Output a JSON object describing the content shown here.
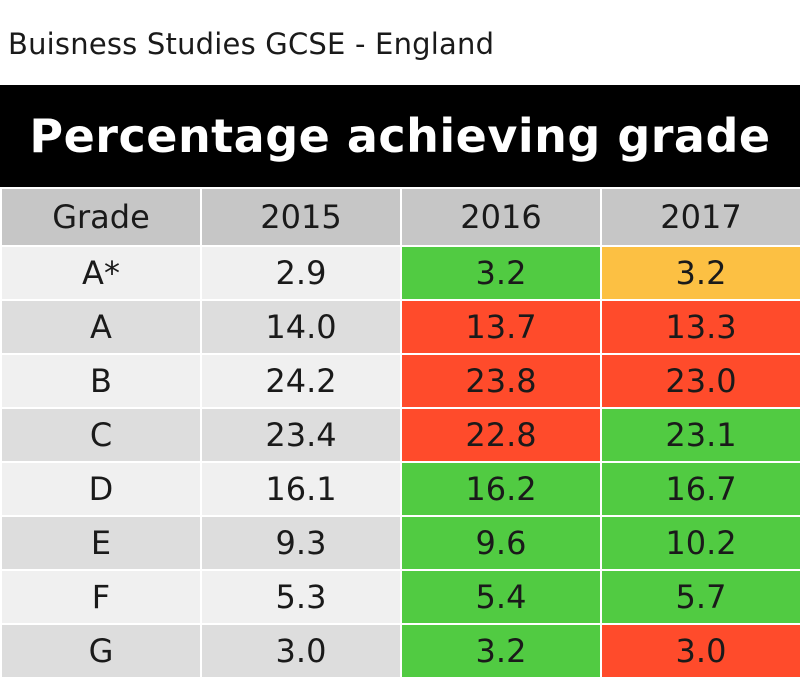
{
  "subtitle": "Buisness Studies  GCSE - England",
  "chart_data": {
    "type": "table",
    "title": "Percentage achieving grade",
    "columns": [
      "Grade",
      "2015",
      "2016",
      "2017"
    ],
    "rows": [
      {
        "grade": "A*",
        "values": [
          "2.9",
          "3.2",
          "3.2"
        ],
        "status": [
          "none",
          "up",
          "same"
        ]
      },
      {
        "grade": "A",
        "values": [
          "14.0",
          "13.7",
          "13.3"
        ],
        "status": [
          "none",
          "down",
          "down"
        ]
      },
      {
        "grade": "B",
        "values": [
          "24.2",
          "23.8",
          "23.0"
        ],
        "status": [
          "none",
          "down",
          "down"
        ]
      },
      {
        "grade": "C",
        "values": [
          "23.4",
          "22.8",
          "23.1"
        ],
        "status": [
          "none",
          "down",
          "up"
        ]
      },
      {
        "grade": "D",
        "values": [
          "16.1",
          "16.2",
          "16.7"
        ],
        "status": [
          "none",
          "up",
          "up"
        ]
      },
      {
        "grade": "E",
        "values": [
          "9.3",
          "9.6",
          "10.2"
        ],
        "status": [
          "none",
          "up",
          "up"
        ]
      },
      {
        "grade": "F",
        "values": [
          "5.3",
          "5.4",
          "5.7"
        ],
        "status": [
          "none",
          "up",
          "up"
        ]
      },
      {
        "grade": "G",
        "values": [
          "3.0",
          "3.2",
          "3.0"
        ],
        "status": [
          "none",
          "up",
          "down"
        ]
      }
    ],
    "status_colors": {
      "up": "#51cb42",
      "down": "#ff4b2b",
      "same": "#fcc043"
    }
  }
}
